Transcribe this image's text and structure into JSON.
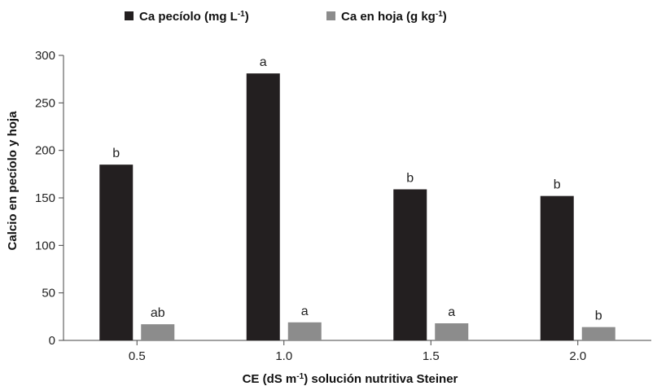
{
  "chart_data": {
    "type": "bar",
    "title": "",
    "xlabel": {
      "pre": "CE (dS m",
      "sup": "-1",
      "post": ") solución nutritiva Steiner"
    },
    "ylabel": "Calcio en pecíolo y hoja",
    "categories": [
      "0.5",
      "1.0",
      "1.5",
      "2.0"
    ],
    "ylim": [
      0,
      300
    ],
    "yticks": [
      0,
      50,
      100,
      150,
      200,
      250,
      300
    ],
    "grid": false,
    "legend_position": "top",
    "series": [
      {
        "name": "Ca pecíolo (mg L-1)",
        "legend": {
          "pre": "Ca pecíolo (mg L",
          "sup": "-1",
          "post": ")"
        },
        "color": "#231f20",
        "values": [
          185,
          281,
          159,
          152
        ],
        "labels": [
          "b",
          "a",
          "b",
          "b"
        ]
      },
      {
        "name": "Ca en hoja (g kg-1)",
        "legend": {
          "pre": "Ca en hoja (g kg",
          "sup": "-1",
          "post": ")"
        },
        "color": "#8c8c8c",
        "values": [
          17,
          19,
          18,
          14
        ],
        "labels": [
          "ab",
          "a",
          "a",
          "b"
        ]
      }
    ]
  }
}
